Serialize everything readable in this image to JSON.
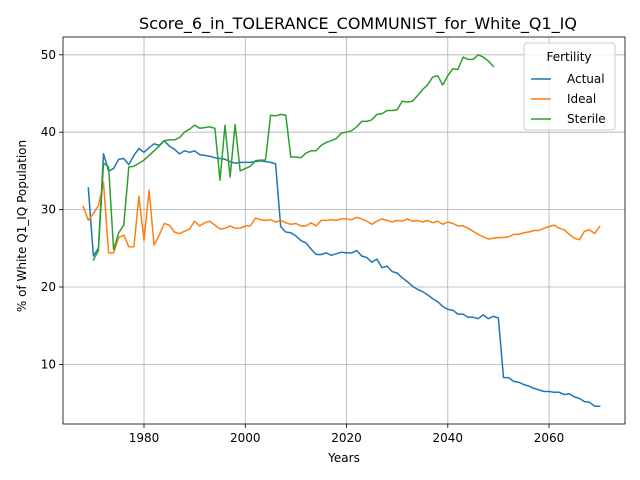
{
  "chart_data": {
    "type": "line",
    "title": "Score_6_in_TOLERANCE_COMMUNIST_for_White_Q1_IQ",
    "xlabel": "Years",
    "ylabel": "% of White Q1_IQ Population",
    "xlim": [
      1964,
      2075
    ],
    "ylim": [
      2.3,
      52.3
    ],
    "xticks": [
      1980,
      2000,
      2020,
      2040,
      2060
    ],
    "yticks": [
      10,
      20,
      30,
      40,
      50
    ],
    "grid": true,
    "legend": {
      "title": "Fertility",
      "placement": "top-right"
    },
    "colors": {
      "Actual": "#1f77b4",
      "Ideal": "#ff7f0e",
      "Sterile": "#2ca02c"
    },
    "series": [
      {
        "name": "Actual",
        "points": [
          [
            1969,
            32.8
          ],
          [
            1970,
            24.0
          ],
          [
            1971,
            25.0
          ],
          [
            1972,
            37.2
          ],
          [
            1973,
            35.0
          ],
          [
            1974,
            35.3
          ],
          [
            1975,
            36.5
          ],
          [
            1976,
            36.6
          ],
          [
            1977,
            35.8
          ],
          [
            1978,
            37.0
          ],
          [
            1979,
            37.9
          ],
          [
            1980,
            37.4
          ],
          [
            1981,
            38.0
          ],
          [
            1982,
            38.5
          ],
          [
            1983,
            38.3
          ],
          [
            1984,
            38.9
          ],
          [
            1985,
            38.2
          ],
          [
            1986,
            37.8
          ],
          [
            1987,
            37.2
          ],
          [
            1988,
            37.6
          ],
          [
            1989,
            37.4
          ],
          [
            1990,
            37.6
          ],
          [
            1991,
            37.1
          ],
          [
            1992,
            37.0
          ],
          [
            1993,
            36.9
          ],
          [
            1994,
            36.7
          ],
          [
            1995,
            36.6
          ],
          [
            1996,
            36.5
          ],
          [
            1997,
            36.2
          ],
          [
            1998,
            36.0
          ],
          [
            1999,
            36.1
          ],
          [
            2000,
            36.1
          ],
          [
            2001,
            36.1
          ],
          [
            2002,
            36.2
          ],
          [
            2003,
            36.3
          ],
          [
            2004,
            36.2
          ],
          [
            2005,
            36.1
          ],
          [
            2006,
            35.9
          ],
          [
            2007,
            27.8
          ],
          [
            2008,
            27.1
          ],
          [
            2009,
            27.0
          ],
          [
            2010,
            26.6
          ],
          [
            2011,
            26.0
          ],
          [
            2012,
            25.7
          ],
          [
            2013,
            24.9
          ],
          [
            2014,
            24.2
          ],
          [
            2015,
            24.2
          ],
          [
            2016,
            24.4
          ],
          [
            2017,
            24.1
          ],
          [
            2018,
            24.3
          ],
          [
            2019,
            24.5
          ],
          [
            2020,
            24.4
          ],
          [
            2021,
            24.4
          ],
          [
            2022,
            24.7
          ],
          [
            2023,
            24.0
          ],
          [
            2024,
            23.8
          ],
          [
            2025,
            23.2
          ],
          [
            2026,
            23.6
          ],
          [
            2027,
            22.5
          ],
          [
            2028,
            22.7
          ],
          [
            2029,
            22.0
          ],
          [
            2030,
            21.8
          ],
          [
            2031,
            21.2
          ],
          [
            2032,
            20.7
          ],
          [
            2033,
            20.1
          ],
          [
            2034,
            19.7
          ],
          [
            2035,
            19.4
          ],
          [
            2036,
            19.0
          ],
          [
            2037,
            18.5
          ],
          [
            2038,
            18.1
          ],
          [
            2039,
            17.5
          ],
          [
            2040,
            17.1
          ],
          [
            2041,
            17.0
          ],
          [
            2042,
            16.5
          ],
          [
            2043,
            16.5
          ],
          [
            2044,
            16.1
          ],
          [
            2045,
            16.1
          ],
          [
            2046,
            15.9
          ],
          [
            2047,
            16.4
          ],
          [
            2048,
            15.9
          ],
          [
            2049,
            16.2
          ],
          [
            2050,
            16.0
          ],
          [
            2051,
            8.3
          ],
          [
            2052,
            8.3
          ],
          [
            2053,
            7.8
          ],
          [
            2054,
            7.7
          ],
          [
            2055,
            7.4
          ],
          [
            2056,
            7.2
          ],
          [
            2057,
            6.9
          ],
          [
            2058,
            6.7
          ],
          [
            2059,
            6.5
          ],
          [
            2060,
            6.5
          ],
          [
            2061,
            6.4
          ],
          [
            2062,
            6.4
          ],
          [
            2063,
            6.1
          ],
          [
            2064,
            6.2
          ],
          [
            2065,
            5.8
          ],
          [
            2066,
            5.6
          ],
          [
            2067,
            5.2
          ],
          [
            2068,
            5.1
          ],
          [
            2069,
            4.6
          ],
          [
            2070,
            4.6
          ]
        ]
      },
      {
        "name": "Ideal",
        "points": [
          [
            1968,
            30.4
          ],
          [
            1969,
            28.6
          ],
          [
            1970,
            29.5
          ],
          [
            1971,
            30.5
          ],
          [
            1972,
            33.5
          ],
          [
            1973,
            24.4
          ],
          [
            1974,
            24.4
          ],
          [
            1975,
            26.4
          ],
          [
            1976,
            26.7
          ],
          [
            1977,
            25.2
          ],
          [
            1978,
            25.2
          ],
          [
            1979,
            31.7
          ],
          [
            1980,
            26.0
          ],
          [
            1981,
            32.5
          ],
          [
            1982,
            25.4
          ],
          [
            1983,
            26.7
          ],
          [
            1984,
            28.2
          ],
          [
            1985,
            28.0
          ],
          [
            1986,
            27.1
          ],
          [
            1987,
            26.9
          ],
          [
            1988,
            27.2
          ],
          [
            1989,
            27.5
          ],
          [
            1990,
            28.5
          ],
          [
            1991,
            27.9
          ],
          [
            1992,
            28.3
          ],
          [
            1993,
            28.5
          ],
          [
            1994,
            28.0
          ],
          [
            1995,
            27.5
          ],
          [
            1996,
            27.6
          ],
          [
            1997,
            27.9
          ],
          [
            1998,
            27.6
          ],
          [
            1999,
            27.6
          ],
          [
            2000,
            27.9
          ],
          [
            2001,
            27.9
          ],
          [
            2002,
            28.9
          ],
          [
            2003,
            28.7
          ],
          [
            2004,
            28.6
          ],
          [
            2005,
            28.7
          ],
          [
            2006,
            28.4
          ],
          [
            2007,
            28.6
          ],
          [
            2008,
            28.3
          ],
          [
            2009,
            28.1
          ],
          [
            2010,
            28.2
          ],
          [
            2011,
            27.9
          ],
          [
            2012,
            27.9
          ],
          [
            2013,
            28.3
          ],
          [
            2014,
            27.9
          ],
          [
            2015,
            28.6
          ],
          [
            2016,
            28.6
          ],
          [
            2017,
            28.7
          ],
          [
            2018,
            28.6
          ],
          [
            2019,
            28.8
          ],
          [
            2020,
            28.8
          ],
          [
            2021,
            28.7
          ],
          [
            2022,
            29.0
          ],
          [
            2023,
            28.8
          ],
          [
            2024,
            28.5
          ],
          [
            2025,
            28.1
          ],
          [
            2026,
            28.5
          ],
          [
            2027,
            28.8
          ],
          [
            2028,
            28.6
          ],
          [
            2029,
            28.4
          ],
          [
            2030,
            28.6
          ],
          [
            2031,
            28.5
          ],
          [
            2032,
            28.8
          ],
          [
            2033,
            28.5
          ],
          [
            2034,
            28.6
          ],
          [
            2035,
            28.4
          ],
          [
            2036,
            28.6
          ],
          [
            2037,
            28.3
          ],
          [
            2038,
            28.5
          ],
          [
            2039,
            28.1
          ],
          [
            2040,
            28.4
          ],
          [
            2041,
            28.2
          ],
          [
            2042,
            27.9
          ],
          [
            2043,
            27.9
          ],
          [
            2044,
            27.6
          ],
          [
            2045,
            27.2
          ],
          [
            2046,
            26.8
          ],
          [
            2047,
            26.5
          ],
          [
            2048,
            26.2
          ],
          [
            2049,
            26.3
          ],
          [
            2050,
            26.4
          ],
          [
            2051,
            26.4
          ],
          [
            2052,
            26.5
          ],
          [
            2053,
            26.8
          ],
          [
            2054,
            26.8
          ],
          [
            2055,
            27.0
          ],
          [
            2056,
            27.1
          ],
          [
            2057,
            27.3
          ],
          [
            2058,
            27.3
          ],
          [
            2059,
            27.6
          ],
          [
            2060,
            27.8
          ],
          [
            2061,
            28.0
          ],
          [
            2062,
            27.6
          ],
          [
            2063,
            27.4
          ],
          [
            2064,
            26.8
          ],
          [
            2065,
            26.3
          ],
          [
            2066,
            26.1
          ],
          [
            2067,
            27.2
          ],
          [
            2068,
            27.4
          ],
          [
            2069,
            26.9
          ],
          [
            2070,
            27.8
          ]
        ]
      },
      {
        "name": "Sterile",
        "points": [
          [
            1970,
            23.5
          ],
          [
            1971,
            24.7
          ],
          [
            1972,
            36.0
          ],
          [
            1973,
            35.5
          ],
          [
            1974,
            24.8
          ],
          [
            1975,
            27.0
          ],
          [
            1976,
            28.0
          ],
          [
            1977,
            35.5
          ],
          [
            1978,
            35.6
          ],
          [
            1979,
            36.0
          ],
          [
            1980,
            36.4
          ],
          [
            1981,
            37.0
          ],
          [
            1982,
            37.6
          ],
          [
            1983,
            38.2
          ],
          [
            1984,
            38.9
          ],
          [
            1985,
            39.0
          ],
          [
            1986,
            39.0
          ],
          [
            1987,
            39.3
          ],
          [
            1988,
            40.0
          ],
          [
            1989,
            40.4
          ],
          [
            1990,
            40.9
          ],
          [
            1991,
            40.5
          ],
          [
            1992,
            40.6
          ],
          [
            1993,
            40.7
          ],
          [
            1994,
            40.5
          ],
          [
            1995,
            33.8
          ],
          [
            1996,
            40.9
          ],
          [
            1997,
            34.2
          ],
          [
            1998,
            41.0
          ],
          [
            1999,
            35.0
          ],
          [
            2000,
            35.3
          ],
          [
            2001,
            35.6
          ],
          [
            2002,
            36.3
          ],
          [
            2003,
            36.4
          ],
          [
            2004,
            36.4
          ],
          [
            2005,
            42.2
          ],
          [
            2006,
            42.1
          ],
          [
            2007,
            42.3
          ],
          [
            2008,
            42.2
          ],
          [
            2009,
            36.8
          ],
          [
            2010,
            36.8
          ],
          [
            2011,
            36.7
          ],
          [
            2012,
            37.3
          ],
          [
            2013,
            37.6
          ],
          [
            2014,
            37.6
          ],
          [
            2015,
            38.3
          ],
          [
            2016,
            38.7
          ],
          [
            2017,
            38.9
          ],
          [
            2018,
            39.2
          ],
          [
            2019,
            39.9
          ],
          [
            2020,
            40.0
          ],
          [
            2021,
            40.2
          ],
          [
            2022,
            40.7
          ],
          [
            2023,
            41.4
          ],
          [
            2024,
            41.4
          ],
          [
            2025,
            41.6
          ],
          [
            2026,
            42.3
          ],
          [
            2027,
            42.4
          ],
          [
            2028,
            42.8
          ],
          [
            2029,
            42.8
          ],
          [
            2030,
            42.9
          ],
          [
            2031,
            44.0
          ],
          [
            2032,
            43.9
          ],
          [
            2033,
            44.0
          ],
          [
            2034,
            44.7
          ],
          [
            2035,
            45.5
          ],
          [
            2036,
            46.1
          ],
          [
            2037,
            47.1
          ],
          [
            2038,
            47.3
          ],
          [
            2039,
            46.1
          ],
          [
            2040,
            47.3
          ],
          [
            2041,
            48.2
          ],
          [
            2042,
            48.1
          ],
          [
            2043,
            49.7
          ],
          [
            2044,
            49.4
          ],
          [
            2045,
            49.4
          ],
          [
            2046,
            50.0
          ],
          [
            2047,
            49.7
          ],
          [
            2048,
            49.2
          ],
          [
            2049,
            48.5
          ]
        ]
      }
    ]
  }
}
